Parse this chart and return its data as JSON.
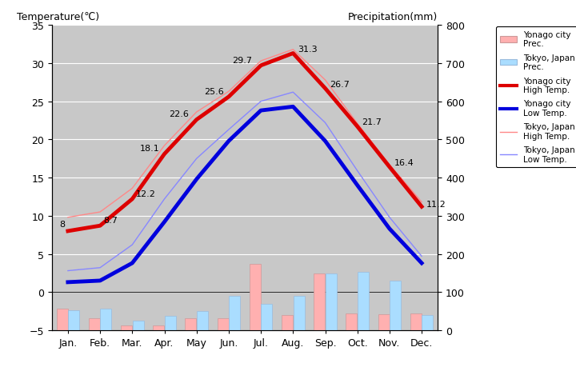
{
  "months": [
    "Jan.",
    "Feb.",
    "Mar.",
    "Apr.",
    "May",
    "Jun.",
    "Jul.",
    "Aug.",
    "Sep.",
    "Oct.",
    "Nov.",
    "Dec."
  ],
  "yonago_high_temp": [
    8.0,
    8.7,
    12.2,
    18.1,
    22.6,
    25.6,
    29.7,
    31.3,
    26.7,
    21.7,
    16.4,
    11.2
  ],
  "yonago_low_temp": [
    1.3,
    1.5,
    3.8,
    9.2,
    14.8,
    19.8,
    23.8,
    24.3,
    19.8,
    14.0,
    8.3,
    3.8
  ],
  "tokyo_high_temp": [
    9.8,
    10.5,
    13.6,
    19.2,
    23.6,
    26.3,
    30.3,
    31.8,
    27.8,
    22.1,
    16.7,
    11.8
  ],
  "tokyo_low_temp": [
    2.8,
    3.2,
    6.2,
    12.2,
    17.5,
    21.3,
    25.0,
    26.2,
    22.2,
    15.9,
    9.8,
    4.7
  ],
  "yonago_prec_mm": [
    57,
    32,
    12,
    12,
    32,
    32,
    173,
    40,
    148,
    43,
    42,
    43
  ],
  "tokyo_prec_mm": [
    52,
    56,
    25,
    38,
    50,
    90,
    70,
    90,
    148,
    152,
    130,
    39
  ],
  "temp_ylim": [
    -5,
    35
  ],
  "prec_ylim": [
    0,
    800
  ],
  "yonago_high_color": "#dd0000",
  "yonago_low_color": "#0000dd",
  "tokyo_high_color": "#ff8888",
  "tokyo_low_color": "#8888ff",
  "yonago_prec_color": "#ffb0b0",
  "tokyo_prec_color": "#aaddff",
  "title_left": "Temperature(℃)",
  "title_right": "Precipitation(mm)",
  "high_labels": [
    "8",
    "8.7",
    "12.2",
    "18.1",
    "22.6",
    "25.6",
    "29.7",
    "31.3",
    "26.7",
    "21.7",
    "16.4",
    "11.2"
  ]
}
